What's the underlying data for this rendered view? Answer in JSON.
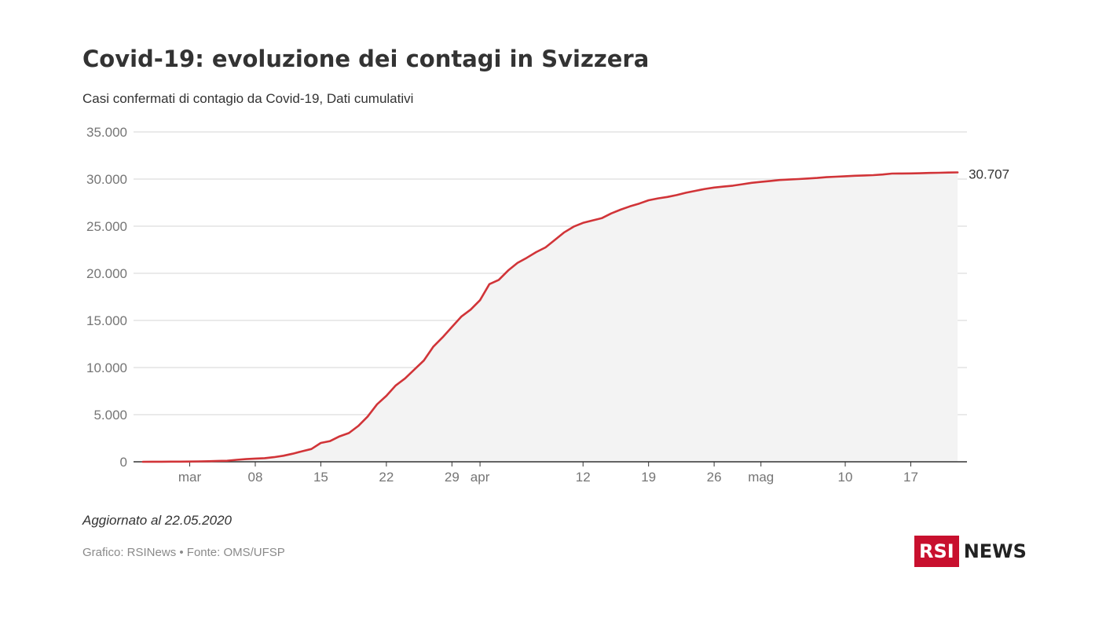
{
  "header": {
    "title": "Covid-19: evoluzione dei contagi in Svizzera",
    "subtitle": "Casi confermati di contagio da Covid-19, Dati cumulativi"
  },
  "footer": {
    "updated": "Aggiornato al 22.05.2020",
    "source": "Grafico: RSINews • Fonte: OMS/UFSP"
  },
  "logo": {
    "box_text": "RSI",
    "word": "NEWS",
    "brand_color": "#c8102e"
  },
  "colors": {
    "line": "#d13438",
    "area": "#f3f3f3",
    "grid": "#d6d6d6",
    "axis": "#333333",
    "tick_text": "#757575"
  },
  "chart_data": {
    "type": "area",
    "title": "",
    "xlabel": "",
    "ylabel": "",
    "ylim": [
      0,
      35000
    ],
    "y_ticks": [
      0,
      5000,
      10000,
      15000,
      20000,
      25000,
      30000,
      35000
    ],
    "y_tick_labels": [
      "0",
      "5.000",
      "10.000",
      "15.000",
      "20.000",
      "25.000",
      "30.000",
      "35.000"
    ],
    "x_ticks": [
      "2020-03-01",
      "2020-03-08",
      "2020-03-15",
      "2020-03-22",
      "2020-03-29",
      "2020-04-01",
      "2020-04-12",
      "2020-04-19",
      "2020-04-26",
      "2020-05-01",
      "2020-05-10",
      "2020-05-17"
    ],
    "x_tick_labels": [
      "mar",
      "08",
      "15",
      "22",
      "29",
      "apr",
      "12",
      "19",
      "26",
      "mag",
      "10",
      "17"
    ],
    "grid": true,
    "end_label": "30.707",
    "series": [
      {
        "values": [
          [
            "2020-02-25",
            1
          ],
          [
            "2020-02-26",
            8
          ],
          [
            "2020-02-27",
            10
          ],
          [
            "2020-02-28",
            15
          ],
          [
            "2020-02-29",
            18
          ],
          [
            "2020-03-01",
            27
          ],
          [
            "2020-03-02",
            42
          ],
          [
            "2020-03-03",
            56
          ],
          [
            "2020-03-04",
            90
          ],
          [
            "2020-03-05",
            110
          ],
          [
            "2020-03-06",
            210
          ],
          [
            "2020-03-07",
            280
          ],
          [
            "2020-03-08",
            340
          ],
          [
            "2020-03-09",
            380
          ],
          [
            "2020-03-10",
            490
          ],
          [
            "2020-03-11",
            640
          ],
          [
            "2020-03-12",
            860
          ],
          [
            "2020-03-13",
            1120
          ],
          [
            "2020-03-14",
            1360
          ],
          [
            "2020-03-15",
            2000
          ],
          [
            "2020-03-16",
            2200
          ],
          [
            "2020-03-17",
            2700
          ],
          [
            "2020-03-18",
            3050
          ],
          [
            "2020-03-19",
            3800
          ],
          [
            "2020-03-20",
            4800
          ],
          [
            "2020-03-21",
            6100
          ],
          [
            "2020-03-22",
            7000
          ],
          [
            "2020-03-23",
            8100
          ],
          [
            "2020-03-24",
            8850
          ],
          [
            "2020-03-25",
            9800
          ],
          [
            "2020-03-26",
            10750
          ],
          [
            "2020-03-27",
            12200
          ],
          [
            "2020-03-28",
            13200
          ],
          [
            "2020-03-29",
            14300
          ],
          [
            "2020-03-30",
            15400
          ],
          [
            "2020-03-31",
            16150
          ],
          [
            "2020-04-01",
            17150
          ],
          [
            "2020-04-02",
            18850
          ],
          [
            "2020-04-03",
            19300
          ],
          [
            "2020-04-04",
            20300
          ],
          [
            "2020-04-05",
            21100
          ],
          [
            "2020-04-06",
            21650
          ],
          [
            "2020-04-07",
            22250
          ],
          [
            "2020-04-08",
            22750
          ],
          [
            "2020-04-09",
            23550
          ],
          [
            "2020-04-10",
            24350
          ],
          [
            "2020-04-11",
            24950
          ],
          [
            "2020-04-12",
            25350
          ],
          [
            "2020-04-13",
            25600
          ],
          [
            "2020-04-14",
            25850
          ],
          [
            "2020-04-15",
            26350
          ],
          [
            "2020-04-16",
            26750
          ],
          [
            "2020-04-17",
            27100
          ],
          [
            "2020-04-18",
            27400
          ],
          [
            "2020-04-19",
            27750
          ],
          [
            "2020-04-20",
            27950
          ],
          [
            "2020-04-21",
            28100
          ],
          [
            "2020-04-22",
            28300
          ],
          [
            "2020-04-23",
            28550
          ],
          [
            "2020-04-24",
            28750
          ],
          [
            "2020-04-25",
            28950
          ],
          [
            "2020-04-26",
            29100
          ],
          [
            "2020-04-27",
            29200
          ],
          [
            "2020-04-28",
            29300
          ],
          [
            "2020-04-29",
            29450
          ],
          [
            "2020-04-30",
            29600
          ],
          [
            "2020-05-01",
            29700
          ],
          [
            "2020-05-02",
            29800
          ],
          [
            "2020-05-03",
            29900
          ],
          [
            "2020-05-04",
            29950
          ],
          [
            "2020-05-05",
            30000
          ],
          [
            "2020-05-06",
            30060
          ],
          [
            "2020-05-07",
            30120
          ],
          [
            "2020-05-08",
            30200
          ],
          [
            "2020-05-09",
            30250
          ],
          [
            "2020-05-10",
            30300
          ],
          [
            "2020-05-11",
            30350
          ],
          [
            "2020-05-12",
            30380
          ],
          [
            "2020-05-13",
            30420
          ],
          [
            "2020-05-14",
            30480
          ],
          [
            "2020-05-15",
            30580
          ],
          [
            "2020-05-16",
            30590
          ],
          [
            "2020-05-17",
            30600
          ],
          [
            "2020-05-18",
            30620
          ],
          [
            "2020-05-19",
            30650
          ],
          [
            "2020-05-20",
            30670
          ],
          [
            "2020-05-21",
            30690
          ],
          [
            "2020-05-22",
            30707
          ]
        ]
      }
    ]
  }
}
